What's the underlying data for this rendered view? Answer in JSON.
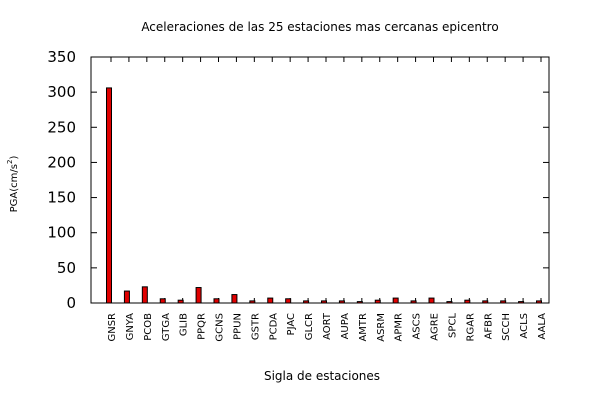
{
  "chart_data": {
    "type": "bar",
    "title": "Aceleraciones de las 25 estaciones mas cercanas epicentro",
    "xlabel": "Sigla de estaciones",
    "ylabel": {
      "prefix": "PGA(cm/s",
      "superscript": "2",
      "suffix": ")"
    },
    "ylim": [
      0,
      350
    ],
    "yticks": [
      "0",
      "50",
      "100",
      "150",
      "200",
      "250",
      "300",
      "350"
    ],
    "categories": [
      "GNSR",
      "GNYA",
      "PCOB",
      "GTGA",
      "GLIB",
      "PPQR",
      "GCNS",
      "PPUN",
      "GSTR",
      "PCDA",
      "PJAC",
      "GLCR",
      "AORT",
      "AUPA",
      "AMTR",
      "ASRM",
      "APMR",
      "ASCS",
      "AGRE",
      "SPCL",
      "RGAR",
      "AFBR",
      "SCCH",
      "ACLS",
      "AALA"
    ],
    "values": [
      306,
      17,
      23,
      6,
      4,
      22,
      6,
      12,
      3,
      7,
      6,
      3,
      3,
      3,
      2,
      4,
      7,
      3,
      7,
      2,
      4,
      3,
      3,
      2,
      3
    ],
    "bar_color": "#e00000",
    "grid": false,
    "legend": "none"
  }
}
